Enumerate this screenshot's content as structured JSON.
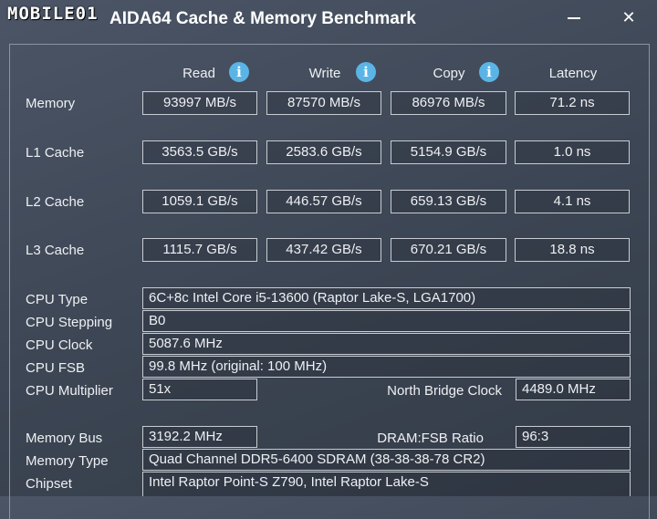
{
  "window": {
    "title": "AIDA64 Cache & Memory Benchmark",
    "watermark": "MOBILE01"
  },
  "columns": [
    {
      "label": "Read",
      "info": "i"
    },
    {
      "label": "Write",
      "info": "i"
    },
    {
      "label": "Copy",
      "info": "i"
    },
    {
      "label": "Latency"
    }
  ],
  "rows": [
    {
      "label": "Memory",
      "read": "93997 MB/s",
      "write": "87570 MB/s",
      "copy": "86976 MB/s",
      "latency": "71.2 ns"
    },
    {
      "label": "L1 Cache",
      "read": "3563.5 GB/s",
      "write": "2583.6 GB/s",
      "copy": "5154.9 GB/s",
      "latency": "1.0 ns"
    },
    {
      "label": "L2 Cache",
      "read": "1059.1 GB/s",
      "write": "446.57 GB/s",
      "copy": "659.13 GB/s",
      "latency": "4.1 ns"
    },
    {
      "label": "L3 Cache",
      "read": "1115.7 GB/s",
      "write": "437.42 GB/s",
      "copy": "670.21 GB/s",
      "latency": "18.8 ns"
    }
  ],
  "cpu": {
    "type_label": "CPU Type",
    "type_value": "6C+8c Intel Core i5-13600  (Raptor Lake-S, LGA1700)",
    "stepping_label": "CPU Stepping",
    "stepping_value": "B0",
    "clock_label": "CPU Clock",
    "clock_value": "5087.6 MHz",
    "fsb_label": "CPU FSB",
    "fsb_value": "99.8 MHz  (original: 100 MHz)",
    "multiplier_label": "CPU Multiplier",
    "multiplier_value": "51x",
    "nb_clock_label": "North Bridge Clock",
    "nb_clock_value": "4489.0 MHz"
  },
  "memory": {
    "bus_label": "Memory Bus",
    "bus_value": "3192.2 MHz",
    "ratio_label": "DRAM:FSB Ratio",
    "ratio_value": "96:3",
    "type_label": "Memory Type",
    "type_value": "Quad Channel DDR5-6400 SDRAM  (38-38-38-78 CR2)",
    "chipset_label": "Chipset",
    "chipset_value": "Intel Raptor Point-S Z790, Intel Raptor Lake-S"
  }
}
